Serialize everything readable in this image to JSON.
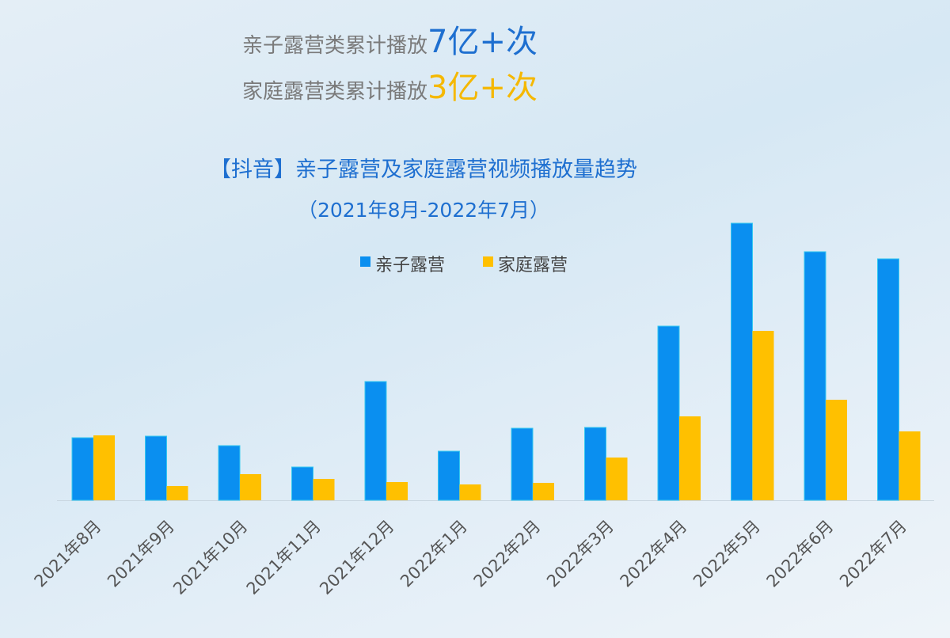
{
  "stats": [
    {
      "label": "亲子露营类累计播放",
      "value": "7亿+次"
    },
    {
      "label": "家庭露营类累计播放",
      "value": "3亿+次"
    }
  ],
  "colors": {
    "blue": "#0a8ff0",
    "orange": "#ffc000",
    "title": "#1e6fd0"
  },
  "chart_data": {
    "type": "bar",
    "title": "【抖音】亲子露营及家庭露营视频播放量趋势",
    "subtitle": "（2021年8月-2022年7月）",
    "xlabel": "",
    "ylabel": "",
    "ylim": [
      0,
      360
    ],
    "legend_position": "top-center",
    "categories": [
      "2021年8月",
      "2021年9月",
      "2021年10月",
      "2021年11月",
      "2021年12月",
      "2022年1月",
      "2022年2月",
      "2022年3月",
      "2022年4月",
      "2022年5月",
      "2022年6月",
      "2022年7月"
    ],
    "series": [
      {
        "name": "亲子露营",
        "values": [
          79,
          81,
          69,
          42,
          150,
          62,
          91,
          92,
          220,
          350,
          314,
          305
        ]
      },
      {
        "name": "家庭露营",
        "values": [
          82,
          18,
          33,
          27,
          23,
          20,
          22,
          54,
          106,
          214,
          127,
          87
        ]
      }
    ]
  }
}
